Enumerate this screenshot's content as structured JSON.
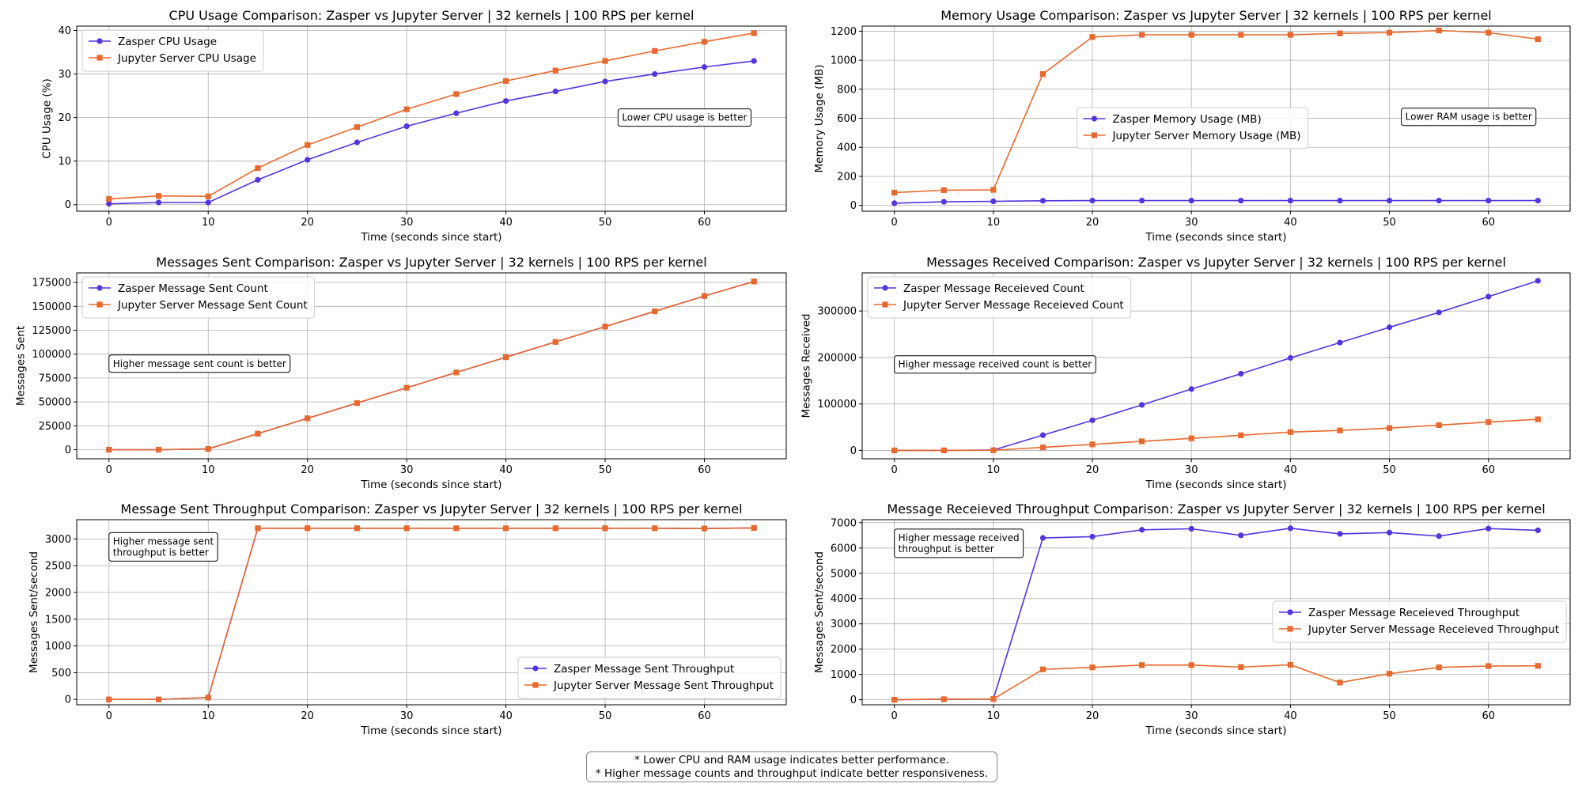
{
  "chart_data": [
    {
      "type": "line",
      "title": "CPU Usage Comparison: Zasper vs Jupyter Server | 32 kernels | 100 RPS per kernel",
      "xlabel": "Time (seconds since start)",
      "ylabel": "CPU Usage (%)",
      "xlim": [
        -3.25,
        68.25
      ],
      "ylim": [
        -1.5,
        41.0
      ],
      "xticks": [
        0,
        10,
        20,
        30,
        40,
        50,
        60
      ],
      "yticks": [
        0,
        10,
        20,
        30,
        40
      ],
      "x": [
        0,
        5,
        10,
        15,
        20,
        25,
        30,
        35,
        40,
        45,
        50,
        55,
        60,
        65
      ],
      "series": [
        {
          "name": "Zasper CPU Usage",
          "color": "#5533dd",
          "marker": "circle",
          "values": [
            0.2,
            0.5,
            0.5,
            5.7,
            10.3,
            14.3,
            18.0,
            21.0,
            23.8,
            26.0,
            28.3,
            30.0,
            31.6,
            33.0
          ]
        },
        {
          "name": "Jupyter Server CPU Usage",
          "color": "#e8692e",
          "marker": "square",
          "values": [
            1.3,
            2.0,
            1.9,
            8.4,
            13.7,
            17.8,
            21.9,
            25.4,
            28.4,
            30.8,
            33.0,
            35.3,
            37.4,
            39.4
          ]
        }
      ],
      "legend_position": "upper-left",
      "annotation": {
        "text": "Lower CPU usage is better",
        "x": 58.0,
        "y": 20.0
      }
    },
    {
      "type": "line",
      "title": "Memory Usage Comparison: Zasper vs Jupyter Server | 32 kernels | 100 RPS per kernel",
      "xlabel": "Time (seconds since start)",
      "ylabel": "Memory Usage (MB)",
      "xlim": [
        -3.25,
        68.25
      ],
      "ylim": [
        -40,
        1235
      ],
      "xticks": [
        0,
        10,
        20,
        30,
        40,
        50,
        60
      ],
      "yticks": [
        0,
        200,
        400,
        600,
        800,
        1000,
        1200
      ],
      "x": [
        0,
        5,
        10,
        15,
        20,
        25,
        30,
        35,
        40,
        45,
        50,
        55,
        60,
        65
      ],
      "series": [
        {
          "name": "Zasper Memory Usage (MB)",
          "color": "#5533dd",
          "marker": "circle",
          "values": [
            15,
            25,
            28,
            32,
            33,
            33,
            33,
            33,
            33,
            33,
            33,
            33,
            33,
            33
          ]
        },
        {
          "name": "Jupyter Server Memory Usage (MB)",
          "color": "#e8692e",
          "marker": "square",
          "values": [
            88,
            105,
            107,
            905,
            1160,
            1175,
            1175,
            1175,
            1175,
            1185,
            1190,
            1205,
            1190,
            1145
          ]
        }
      ],
      "legend_position": "center",
      "annotation": {
        "text": "Lower RAM usage is better",
        "x": 58.0,
        "y": 610
      }
    },
    {
      "type": "line",
      "title": "Messages Sent Comparison: Zasper vs Jupyter Server | 32 kernels | 100 RPS per kernel",
      "xlabel": "Time (seconds since start)",
      "ylabel": "Messages Sent",
      "xlim": [
        -3.25,
        68.25
      ],
      "ylim": [
        -9500,
        185000
      ],
      "xticks": [
        0,
        10,
        20,
        30,
        40,
        50,
        60
      ],
      "yticks": [
        0,
        25000,
        50000,
        75000,
        100000,
        125000,
        150000,
        175000
      ],
      "x": [
        0,
        5,
        10,
        15,
        20,
        25,
        30,
        35,
        40,
        45,
        50,
        55,
        60,
        65
      ],
      "series": [
        {
          "name": "Zasper Message Sent Count",
          "color": "#5533dd",
          "marker": "circle",
          "values": [
            0,
            0,
            800,
            16800,
            32800,
            48800,
            64800,
            80800,
            96800,
            112800,
            128800,
            144800,
            160800,
            176000
          ]
        },
        {
          "name": "Jupyter Server Message Sent Count",
          "color": "#e8692e",
          "marker": "square",
          "values": [
            0,
            0,
            800,
            16800,
            32800,
            48800,
            64800,
            80800,
            96800,
            112800,
            128800,
            144800,
            160800,
            176000
          ]
        }
      ],
      "legend_position": "upper-left",
      "annotation": {
        "text": "Higher message sent count is better",
        "x": 0.0,
        "y": 90000
      }
    },
    {
      "type": "line",
      "title": "Messages Received Comparison: Zasper vs Jupyter Server | 32 kernels | 100 RPS per kernel",
      "xlabel": "Time (seconds since start)",
      "ylabel": "Messages Received",
      "xlim": [
        -3.25,
        68.25
      ],
      "ylim": [
        -18000,
        382000
      ],
      "xticks": [
        0,
        10,
        20,
        30,
        40,
        50,
        60
      ],
      "yticks": [
        0,
        100000,
        200000,
        300000
      ],
      "x": [
        0,
        5,
        10,
        15,
        20,
        25,
        30,
        35,
        40,
        45,
        50,
        55,
        60,
        65
      ],
      "series": [
        {
          "name": "Zasper Message Receieved Count",
          "color": "#5533dd",
          "marker": "circle",
          "values": [
            0,
            0,
            800,
            32800,
            64800,
            98000,
            132000,
            165000,
            199000,
            232000,
            265000,
            297000,
            331000,
            365000
          ]
        },
        {
          "name": "Jupyter Server Message Receieved Count",
          "color": "#e8692e",
          "marker": "square",
          "values": [
            0,
            0,
            400,
            6500,
            13000,
            19500,
            26000,
            32500,
            39500,
            43000,
            48000,
            54500,
            61000,
            67000
          ]
        }
      ],
      "legend_position": "upper-left",
      "annotation": {
        "text": "Higher message received count is better",
        "x": 0.0,
        "y": 185000
      }
    },
    {
      "type": "line",
      "title": "Message Sent Throughput Comparison: Zasper vs Jupyter Server | 32 kernels | 100 RPS per kernel",
      "xlabel": "Time (seconds since start)",
      "ylabel": "Messages Sent/second",
      "xlim": [
        -3.25,
        68.25
      ],
      "ylim": [
        -100,
        3360
      ],
      "xticks": [
        0,
        10,
        20,
        30,
        40,
        50,
        60
      ],
      "yticks": [
        0,
        500,
        1000,
        1500,
        2000,
        2500,
        3000
      ],
      "x": [
        0,
        5,
        10,
        15,
        20,
        25,
        30,
        35,
        40,
        45,
        50,
        55,
        60,
        65
      ],
      "series": [
        {
          "name": "Zasper Message Sent Throughput",
          "color": "#5533dd",
          "marker": "circle",
          "values": [
            0,
            0,
            35,
            3200,
            3200,
            3200,
            3200,
            3200,
            3200,
            3200,
            3200,
            3200,
            3195,
            3205
          ]
        },
        {
          "name": "Jupyter Server Message Sent Throughput",
          "color": "#e8692e",
          "marker": "square",
          "values": [
            0,
            0,
            35,
            3200,
            3200,
            3200,
            3200,
            3200,
            3200,
            3200,
            3200,
            3200,
            3195,
            3205
          ]
        }
      ],
      "legend_position": "lower-right",
      "annotation": {
        "text": "Higher message sent\n throughput is better",
        "x": 0.0,
        "y": 3000
      }
    },
    {
      "type": "line",
      "title": "Message Receieved Throughput Comparison: Zasper vs Jupyter Server | 32 kernels | 100 RPS per kernel",
      "xlabel": "Time (seconds since start)",
      "ylabel": "Messages Sent/second",
      "xlim": [
        -3.25,
        68.25
      ],
      "ylim": [
        -200,
        7120
      ],
      "xticks": [
        0,
        10,
        20,
        30,
        40,
        50,
        60
      ],
      "yticks": [
        0,
        1000,
        2000,
        3000,
        4000,
        5000,
        6000,
        7000
      ],
      "x": [
        0,
        5,
        10,
        15,
        20,
        25,
        30,
        35,
        40,
        45,
        50,
        55,
        60,
        65
      ],
      "series": [
        {
          "name": "Zasper Message Receieved Throughput",
          "color": "#5533dd",
          "marker": "circle",
          "values": [
            0,
            20,
            30,
            6400,
            6450,
            6720,
            6760,
            6500,
            6780,
            6560,
            6610,
            6470,
            6770,
            6700
          ]
        },
        {
          "name": "Jupyter Server Message Receieved Throughput",
          "color": "#e8692e",
          "marker": "square",
          "values": [
            0,
            20,
            30,
            1200,
            1280,
            1370,
            1370,
            1290,
            1380,
            680,
            1030,
            1280,
            1330,
            1340
          ]
        }
      ],
      "legend_position": "center-right",
      "annotation": {
        "text": "Higher message received\n throughput is better",
        "x": 0.0,
        "y": 6500
      }
    }
  ],
  "footnote": {
    "line1": "* Lower CPU and RAM usage indicates better performance.",
    "line2": "* Higher message counts and throughput indicate better responsiveness."
  }
}
